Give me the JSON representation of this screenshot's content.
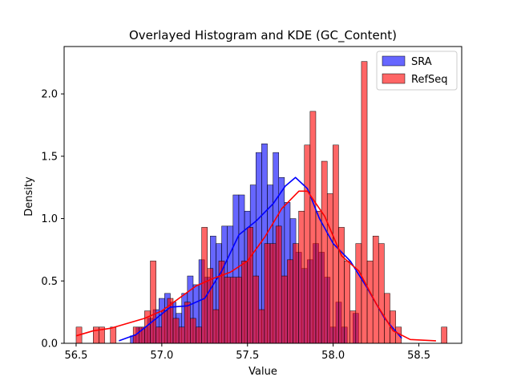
{
  "chart_data": {
    "type": "histogram",
    "title": "Overlayed Histogram and KDE (GC_Content)",
    "xlabel": "Value",
    "ylabel": "Density",
    "xlim": [
      56.43,
      58.75
    ],
    "ylim": [
      0,
      2.38
    ],
    "xticks": [
      56.5,
      57.0,
      57.5,
      58.0,
      58.5
    ],
    "xtick_labels": [
      "56.5",
      "57.0",
      "57.5",
      "58.0",
      "58.5"
    ],
    "yticks": [
      0.0,
      0.5,
      1.0,
      1.5,
      2.0
    ],
    "ytick_labels": [
      "0.0",
      "0.5",
      "1.0",
      "1.5",
      "2.0"
    ],
    "grid": false,
    "legend_position": "top-right",
    "series": [
      {
        "name": "SRA",
        "color": "#0000ff",
        "bin_start": 56.75,
        "bin_width": 0.0333,
        "values": [
          0.0,
          0.0,
          0.06,
          0.13,
          0.13,
          0.2,
          0.27,
          0.36,
          0.4,
          0.33,
          0.24,
          0.4,
          0.54,
          0.47,
          0.67,
          0.53,
          0.86,
          0.8,
          0.94,
          0.94,
          1.19,
          1.19,
          1.06,
          1.27,
          1.53,
          1.6,
          1.27,
          1.53,
          1.33,
          1.13,
          1.0,
          0.73,
          0.6,
          0.67,
          0.8,
          0.73,
          0.53,
          0.13,
          0.33,
          0.13,
          0.0,
          0.24,
          0.0
        ],
        "kde": [
          [
            56.75,
            0.02
          ],
          [
            56.85,
            0.07
          ],
          [
            56.95,
            0.18
          ],
          [
            57.05,
            0.29
          ],
          [
            57.15,
            0.3
          ],
          [
            57.25,
            0.36
          ],
          [
            57.35,
            0.58
          ],
          [
            57.45,
            0.87
          ],
          [
            57.55,
            0.98
          ],
          [
            57.65,
            1.12
          ],
          [
            57.72,
            1.26
          ],
          [
            57.78,
            1.33
          ],
          [
            57.85,
            1.24
          ],
          [
            57.92,
            1.0
          ],
          [
            58.0,
            0.8
          ],
          [
            58.1,
            0.66
          ],
          [
            58.2,
            0.44
          ],
          [
            58.3,
            0.2
          ],
          [
            58.4,
            0.04
          ]
        ]
      },
      {
        "name": "RefSeq",
        "color": "#ff0000",
        "bin_start": 56.5,
        "bin_width": 0.0333,
        "values": [
          0.13,
          0.0,
          0.0,
          0.13,
          0.13,
          0.0,
          0.13,
          0.0,
          0.0,
          0.0,
          0.13,
          0.13,
          0.26,
          0.66,
          0.13,
          0.26,
          0.36,
          0.2,
          0.13,
          0.33,
          0.2,
          0.13,
          0.93,
          0.6,
          0.27,
          0.66,
          0.53,
          0.53,
          0.53,
          0.66,
          0.93,
          0.54,
          0.27,
          0.8,
          0.8,
          0.94,
          0.54,
          0.67,
          0.8,
          1.06,
          1.59,
          1.86,
          1.06,
          1.46,
          1.2,
          1.59,
          0.93,
          0.66,
          0.26,
          0.8,
          2.26,
          0.66,
          0.86,
          0.8,
          0.4,
          0.26,
          0.13,
          0.0,
          0.0,
          0.0,
          0.0,
          0.0,
          0.0,
          0.0,
          0.13
        ],
        "kde": [
          [
            56.5,
            0.06
          ],
          [
            56.6,
            0.1
          ],
          [
            56.7,
            0.12
          ],
          [
            56.8,
            0.16
          ],
          [
            56.9,
            0.2
          ],
          [
            57.0,
            0.26
          ],
          [
            57.1,
            0.36
          ],
          [
            57.2,
            0.46
          ],
          [
            57.3,
            0.52
          ],
          [
            57.4,
            0.57
          ],
          [
            57.5,
            0.66
          ],
          [
            57.6,
            0.85
          ],
          [
            57.7,
            1.08
          ],
          [
            57.8,
            1.22
          ],
          [
            57.85,
            1.22
          ],
          [
            57.95,
            1.02
          ],
          [
            58.05,
            0.7
          ],
          [
            58.15,
            0.58
          ],
          [
            58.25,
            0.32
          ],
          [
            58.35,
            0.1
          ],
          [
            58.45,
            0.03
          ],
          [
            58.6,
            0.02
          ]
        ]
      }
    ]
  }
}
